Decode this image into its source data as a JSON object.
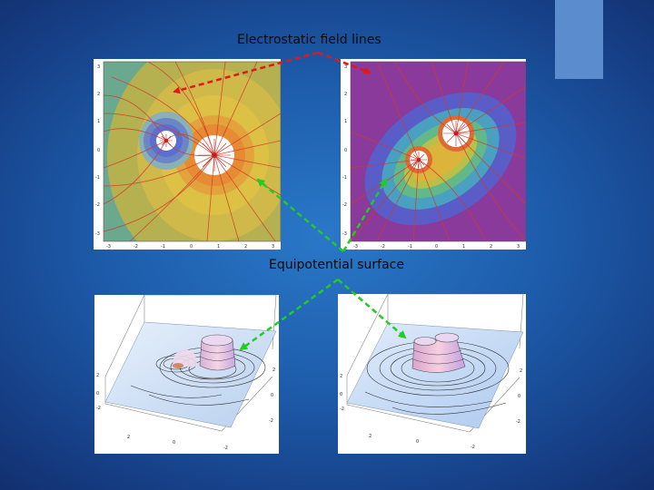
{
  "labels": {
    "field_lines": "Electrostatic field lines",
    "equipotential": "Equipotential surface"
  },
  "panels": {
    "top_left": {
      "x_ticks": [
        "-3",
        "-2",
        "-1",
        "0",
        "1",
        "2",
        "3"
      ],
      "y_ticks": [
        "3",
        "2",
        "1",
        "0",
        "-1",
        "-2",
        "-3"
      ]
    },
    "top_right": {
      "x_ticks": [
        "-3",
        "-2",
        "-1",
        "0",
        "1",
        "2",
        "3"
      ],
      "y_ticks": [
        "3",
        "2",
        "1",
        "0",
        "-1",
        "-2",
        "-3"
      ]
    },
    "bottom_left": {
      "axis_ticks": [
        "2",
        "0",
        "-2"
      ]
    },
    "bottom_right": {
      "axis_ticks": [
        "2",
        "0",
        "-2"
      ]
    }
  },
  "colors": {
    "accent": "#5b8ccd",
    "red_arrow": "#e01818",
    "green_arrow": "#22cc22",
    "field_line": "#d03a2a"
  }
}
